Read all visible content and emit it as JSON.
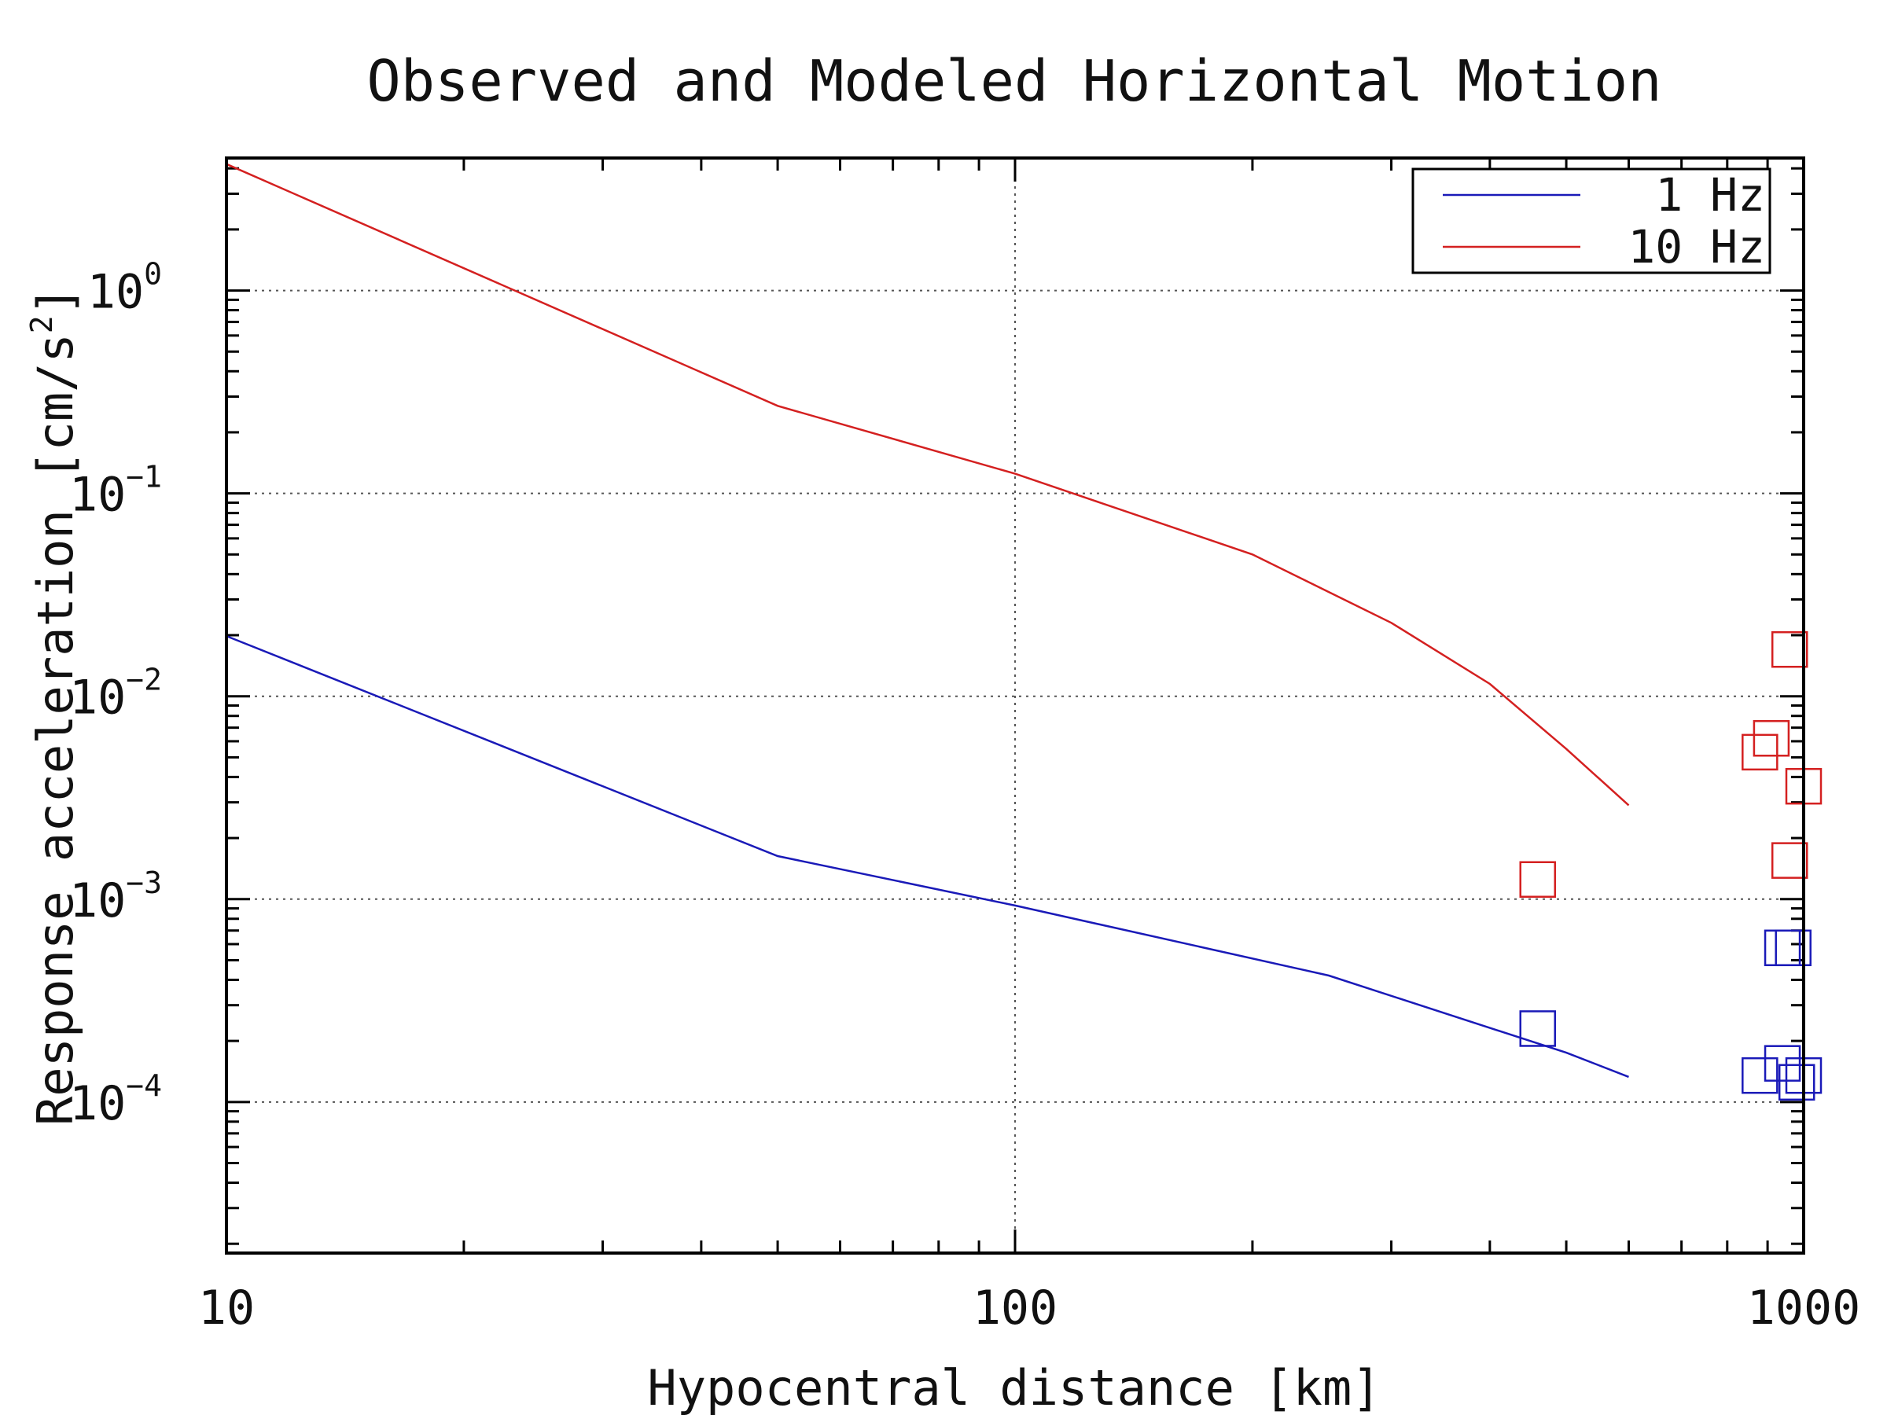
{
  "chart_data": {
    "type": "scatter",
    "title": "Observed and Modeled Horizontal Motion",
    "xlabel": "Hypocentral distance [km]",
    "ylabel": "Response acceleration [cm/s",
    "ylabel_sup": "2",
    "ylabel_end": "]",
    "xscale": "log",
    "yscale": "log",
    "xlim": [
      10,
      1000
    ],
    "ylim": [
      1.8e-05,
      4.5
    ],
    "x_ticks": [
      {
        "value": 10,
        "label": "10"
      },
      {
        "value": 100,
        "label": "100"
      },
      {
        "value": 1000,
        "label": "1000"
      }
    ],
    "y_ticks": [
      {
        "value": 1,
        "base": "10",
        "exp": "0"
      },
      {
        "value": 0.1,
        "base": "10",
        "exp": "−1"
      },
      {
        "value": 0.01,
        "base": "10",
        "exp": "−2"
      },
      {
        "value": 0.001,
        "base": "10",
        "exp": "−3"
      },
      {
        "value": 0.0001,
        "base": "10",
        "exp": "−4"
      }
    ],
    "grid": true,
    "legend_position": "top-right",
    "series": [
      {
        "name": "1 Hz",
        "color": "#1a1ab8",
        "line": {
          "x": [
            10,
            50,
            100,
            250,
            500,
            600
          ],
          "y": [
            0.0198,
            0.00163,
            0.00093,
            0.00042,
            0.000175,
            0.000133
          ]
        },
        "observed": {
          "x": [
            460,
            880,
            940,
            980,
            940,
            970,
            1000
          ],
          "y": [
            0.00023,
            0.000135,
            0.000155,
            0.000125,
            0.000575,
            0.000575,
            0.000135
          ]
        }
      },
      {
        "name": "10 Hz",
        "color": "#d42020",
        "line": {
          "x": [
            10,
            50,
            100,
            200,
            300,
            400,
            500,
            600
          ],
          "y": [
            4.2,
            0.27,
            0.125,
            0.05,
            0.023,
            0.0115,
            0.0055,
            0.0029
          ]
        },
        "observed": {
          "x": [
            460,
            880,
            910,
            960,
            960,
            1000
          ],
          "y": [
            0.00125,
            0.0053,
            0.0062,
            0.017,
            0.00155,
            0.0036
          ]
        }
      }
    ]
  }
}
